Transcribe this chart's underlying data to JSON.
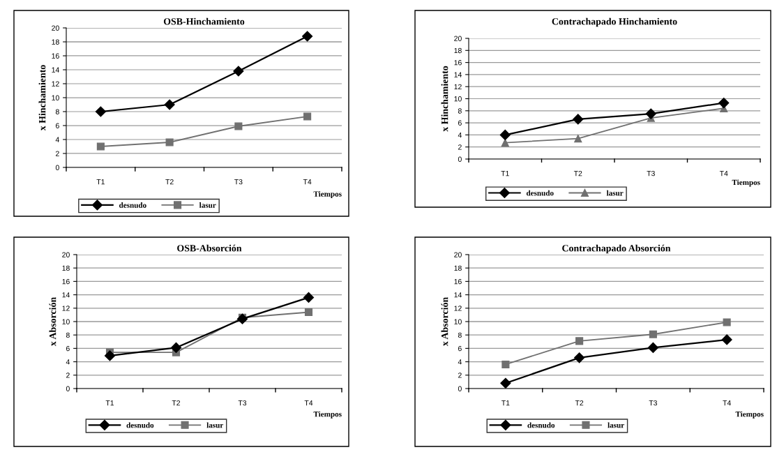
{
  "chart_data": [
    {
      "type": "line",
      "title": "OSB-Hinchamiento",
      "xlabel": "Tiempos",
      "ylabel": "x Hinchamiento",
      "categories": [
        "T1",
        "T2",
        "T3",
        "T4"
      ],
      "ylim": [
        0,
        20
      ],
      "yticks": [
        0,
        2,
        4,
        6,
        8,
        10,
        12,
        14,
        16,
        18,
        20
      ],
      "grid": "y",
      "legend": "bottom",
      "series": [
        {
          "name": "desnudo",
          "color": "#000000",
          "marker": "diamond",
          "values": [
            8,
            9,
            13.8,
            18.8
          ]
        },
        {
          "name": "lasur",
          "color": "#707070",
          "marker": "square",
          "values": [
            3,
            3.6,
            5.9,
            7.3
          ]
        }
      ]
    },
    {
      "type": "line",
      "title": "Contrachapado Hinchamiento",
      "xlabel": "Tiempos",
      "ylabel": "x Hinchamiento",
      "categories": [
        "T1",
        "T2",
        "T3",
        "T4"
      ],
      "ylim": [
        0,
        20
      ],
      "yticks": [
        0,
        2,
        4,
        6,
        8,
        10,
        12,
        14,
        16,
        18,
        20
      ],
      "grid": "y",
      "legend": "bottom",
      "series": [
        {
          "name": "desnudo",
          "color": "#000000",
          "marker": "diamond",
          "values": [
            4,
            6.6,
            7.5,
            9.3
          ]
        },
        {
          "name": "lasur",
          "color": "#707070",
          "marker": "triangle",
          "values": [
            2.7,
            3.4,
            6.8,
            8.4
          ]
        }
      ]
    },
    {
      "type": "line",
      "title": "OSB-Absorción",
      "xlabel": "Tiempos",
      "ylabel": "x Absorción",
      "categories": [
        "T1",
        "T2",
        "T3",
        "T4"
      ],
      "ylim": [
        0,
        20
      ],
      "yticks": [
        0,
        2,
        4,
        6,
        8,
        10,
        12,
        14,
        16,
        18,
        20
      ],
      "grid": "y",
      "legend": "bottom",
      "series": [
        {
          "name": "desnudo",
          "color": "#000000",
          "marker": "diamond",
          "values": [
            4.9,
            6.1,
            10.4,
            13.6
          ]
        },
        {
          "name": "lasur",
          "color": "#707070",
          "marker": "square",
          "values": [
            5.4,
            5.4,
            10.6,
            11.4
          ]
        }
      ]
    },
    {
      "type": "line",
      "title": "Contrachapado Absorción",
      "xlabel": "Tiempos",
      "ylabel": "x Absorción",
      "categories": [
        "T1",
        "T2",
        "T3",
        "T4"
      ],
      "ylim": [
        0,
        20
      ],
      "yticks": [
        0,
        2,
        4,
        6,
        8,
        10,
        12,
        14,
        16,
        18,
        20
      ],
      "grid": "y",
      "legend": "bottom",
      "series": [
        {
          "name": "desnudo",
          "color": "#000000",
          "marker": "diamond",
          "values": [
            0.8,
            4.6,
            6.1,
            7.3
          ]
        },
        {
          "name": "lasur",
          "color": "#707070",
          "marker": "square",
          "values": [
            3.6,
            7.1,
            8.1,
            9.9
          ]
        }
      ]
    }
  ]
}
